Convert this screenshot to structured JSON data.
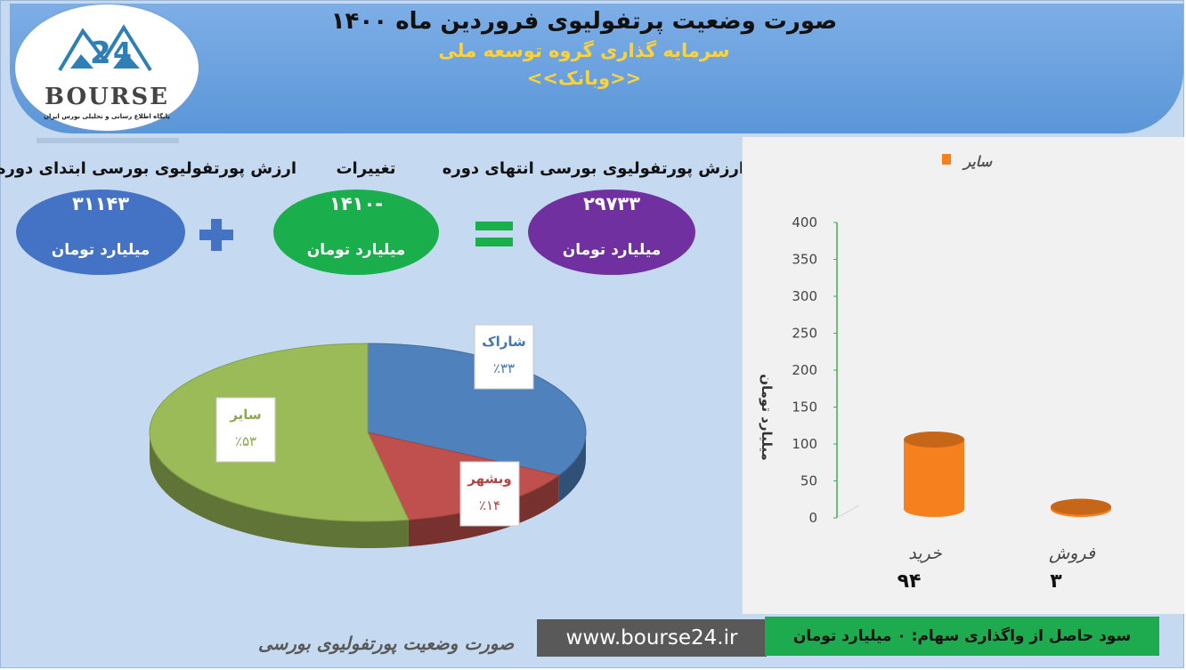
{
  "header": {
    "title": "صورت وضعیت پرتفولیوی فروردین ماه ۱۴۰۰",
    "subtitle": "سرمایه گذاری گروه توسعه ملی",
    "symbol": "<<وبانک>>"
  },
  "logo": {
    "wordmark": "BOURSE",
    "tagline": "پایگاه اطلاع رسانی و تحلیلی بورس ایران"
  },
  "summary": {
    "start_label": "ارزش پورتفولیوی بورسی ابتدای دوره",
    "start_value": "۳۱۱۴۳",
    "change_label": "تغییرات",
    "change_value": "-۱۴۱۰",
    "end_label": "ارزش پورتفولیوی بورسی انتهای دوره",
    "end_value": "۲۹۷۳۳",
    "unit": "میلیارد تومان",
    "plus_sign": "+",
    "equals_sign": "=",
    "colors": {
      "start": "#4472c4",
      "change": "#1aae4c",
      "end": "#7030a0"
    }
  },
  "chart_data": [
    {
      "type": "pie",
      "slices": [
        {
          "label": "شاراک",
          "value": 33,
          "display": "٪۳۳",
          "color": "#4f81bd"
        },
        {
          "label": "وبشهر",
          "value": 14,
          "display": "٪۱۴",
          "color": "#c0504d"
        },
        {
          "label": "سایر",
          "value": 53,
          "display": "٪۵۳",
          "color": "#9bbb59"
        }
      ]
    },
    {
      "type": "bar",
      "categories": [
        "خرید",
        "فروش"
      ],
      "series": [
        {
          "name": "سایر",
          "values": [
            94,
            3
          ],
          "color": "#f7801e"
        }
      ],
      "value_labels": [
        "۹۴",
        "۳"
      ],
      "ylabel": "میلیارد تومان",
      "ylim": [
        0,
        400
      ],
      "yticks": [
        0,
        50,
        100,
        150,
        200,
        250,
        300,
        350,
        400
      ],
      "legend": "top-right",
      "grid": false
    }
  ],
  "footer": {
    "caption": "صورت وضعیت پورتفولیوی بورسی",
    "url": "www.bourse24.ir",
    "profit": "سود حاصل از واگذاری سهام: ۰ میلیارد تومان"
  }
}
